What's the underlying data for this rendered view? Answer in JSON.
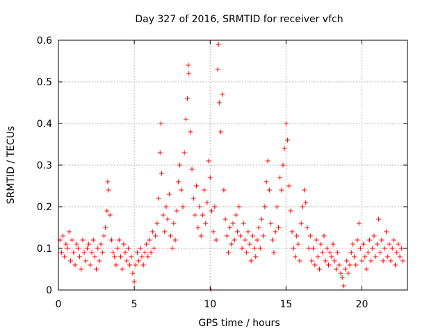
{
  "chart_data": {
    "type": "scatter",
    "title": "Day 327 of 2016, SRMTID for receiver vfch",
    "xlabel": "GPS time / hours",
    "ylabel": "SRMTID / TECUs",
    "xlim": [
      0,
      23
    ],
    "ylim": [
      0,
      0.6
    ],
    "x_ticks": [
      0,
      5,
      10,
      15,
      20
    ],
    "x_tick_labels": [
      "0",
      "5",
      "10",
      "15",
      "20"
    ],
    "y_ticks": [
      0,
      0.1,
      0.2,
      0.3,
      0.4,
      0.5,
      0.6
    ],
    "y_tick_labels": [
      "0",
      "0.1",
      "0.2",
      "0.3",
      "0.4",
      "0.5",
      "0.6"
    ],
    "grid": true,
    "marker": "+",
    "color": "#ff0000",
    "series": [
      {
        "name": "vfch",
        "points": [
          [
            0.1,
            0.12
          ],
          [
            0.2,
            0.09
          ],
          [
            0.3,
            0.13
          ],
          [
            0.4,
            0.08
          ],
          [
            0.5,
            0.11
          ],
          [
            0.6,
            0.1
          ],
          [
            0.7,
            0.14
          ],
          [
            0.8,
            0.07
          ],
          [
            0.9,
            0.12
          ],
          [
            1.0,
            0.09
          ],
          [
            1.1,
            0.06
          ],
          [
            1.2,
            0.11
          ],
          [
            1.3,
            0.1
          ],
          [
            1.4,
            0.08
          ],
          [
            1.5,
            0.05
          ],
          [
            1.6,
            0.12
          ],
          [
            1.7,
            0.09
          ],
          [
            1.8,
            0.07
          ],
          [
            1.9,
            0.1
          ],
          [
            2.0,
            0.11
          ],
          [
            2.1,
            0.06
          ],
          [
            2.2,
            0.09
          ],
          [
            2.3,
            0.12
          ],
          [
            2.4,
            0.08
          ],
          [
            2.5,
            0.05
          ],
          [
            2.6,
            0.1
          ],
          [
            2.7,
            0.07
          ],
          [
            2.8,
            0.11
          ],
          [
            2.9,
            0.09
          ],
          [
            3.0,
            0.13
          ],
          [
            3.1,
            0.15
          ],
          [
            3.2,
            0.19
          ],
          [
            3.25,
            0.26
          ],
          [
            3.3,
            0.24
          ],
          [
            3.4,
            0.18
          ],
          [
            3.5,
            0.12
          ],
          [
            3.6,
            0.09
          ],
          [
            3.7,
            0.08
          ],
          [
            3.8,
            0.06
          ],
          [
            3.9,
            0.1
          ],
          [
            4.0,
            0.12
          ],
          [
            4.1,
            0.08
          ],
          [
            4.2,
            0.05
          ],
          [
            4.3,
            0.11
          ],
          [
            4.4,
            0.09
          ],
          [
            4.5,
            0.07
          ],
          [
            4.6,
            0.1
          ],
          [
            4.7,
            0.06
          ],
          [
            4.8,
            0.08
          ],
          [
            4.9,
            0.04
          ],
          [
            5.0,
            0.02
          ],
          [
            5.1,
            0.06
          ],
          [
            5.2,
            0.09
          ],
          [
            5.3,
            0.07
          ],
          [
            5.4,
            0.1
          ],
          [
            5.5,
            0.08
          ],
          [
            5.6,
            0.06
          ],
          [
            5.7,
            0.09
          ],
          [
            5.8,
            0.11
          ],
          [
            5.9,
            0.08
          ],
          [
            6.0,
            0.12
          ],
          [
            6.1,
            0.09
          ],
          [
            6.2,
            0.14
          ],
          [
            6.3,
            0.1
          ],
          [
            6.4,
            0.13
          ],
          [
            6.5,
            0.16
          ],
          [
            6.6,
            0.22
          ],
          [
            6.7,
            0.33
          ],
          [
            6.75,
            0.4
          ],
          [
            6.8,
            0.28
          ],
          [
            6.9,
            0.18
          ],
          [
            7.0,
            0.14
          ],
          [
            7.1,
            0.2
          ],
          [
            7.2,
            0.17
          ],
          [
            7.3,
            0.23
          ],
          [
            7.4,
            0.13
          ],
          [
            7.5,
            0.1
          ],
          [
            7.6,
            0.16
          ],
          [
            7.7,
            0.12
          ],
          [
            7.8,
            0.19
          ],
          [
            7.9,
            0.26
          ],
          [
            8.0,
            0.3
          ],
          [
            8.1,
            0.24
          ],
          [
            8.2,
            0.2
          ],
          [
            8.3,
            0.33
          ],
          [
            8.4,
            0.41
          ],
          [
            8.5,
            0.46
          ],
          [
            8.55,
            0.54
          ],
          [
            8.6,
            0.52
          ],
          [
            8.7,
            0.38
          ],
          [
            8.8,
            0.29
          ],
          [
            8.9,
            0.22
          ],
          [
            9.0,
            0.18
          ],
          [
            9.1,
            0.25
          ],
          [
            9.2,
            0.15
          ],
          [
            9.3,
            0.2
          ],
          [
            9.4,
            0.13
          ],
          [
            9.5,
            0.18
          ],
          [
            9.6,
            0.24
          ],
          [
            9.7,
            0.16
          ],
          [
            9.8,
            0.21
          ],
          [
            9.9,
            0.31
          ],
          [
            10.0,
            0.27
          ],
          [
            10.05,
            0.0
          ],
          [
            10.1,
            0.19
          ],
          [
            10.2,
            0.14
          ],
          [
            10.3,
            0.2
          ],
          [
            10.4,
            0.12
          ],
          [
            10.5,
            0.53
          ],
          [
            10.55,
            0.59
          ],
          [
            10.6,
            0.45
          ],
          [
            10.7,
            0.38
          ],
          [
            10.8,
            0.47
          ],
          [
            10.9,
            0.24
          ],
          [
            11.0,
            0.17
          ],
          [
            11.1,
            0.13
          ],
          [
            11.2,
            0.09
          ],
          [
            11.3,
            0.15
          ],
          [
            11.4,
            0.11
          ],
          [
            11.5,
            0.16
          ],
          [
            11.6,
            0.12
          ],
          [
            11.7,
            0.18
          ],
          [
            11.8,
            0.14
          ],
          [
            11.9,
            0.2
          ],
          [
            12.0,
            0.13
          ],
          [
            12.1,
            0.1
          ],
          [
            12.2,
            0.16
          ],
          [
            12.3,
            0.12
          ],
          [
            12.4,
            0.09
          ],
          [
            12.5,
            0.14
          ],
          [
            12.6,
            0.11
          ],
          [
            12.7,
            0.07
          ],
          [
            12.8,
            0.13
          ],
          [
            12.9,
            0.1
          ],
          [
            13.0,
            0.08
          ],
          [
            13.1,
            0.12
          ],
          [
            13.2,
            0.15
          ],
          [
            13.3,
            0.1
          ],
          [
            13.4,
            0.17
          ],
          [
            13.5,
            0.13
          ],
          [
            13.6,
            0.2
          ],
          [
            13.7,
            0.26
          ],
          [
            13.8,
            0.31
          ],
          [
            13.9,
            0.24
          ],
          [
            14.0,
            0.16
          ],
          [
            14.1,
            0.12
          ],
          [
            14.2,
            0.09
          ],
          [
            14.3,
            0.14
          ],
          [
            14.4,
            0.2
          ],
          [
            14.5,
            0.15
          ],
          [
            14.6,
            0.27
          ],
          [
            14.7,
            0.24
          ],
          [
            14.8,
            0.3
          ],
          [
            14.9,
            0.34
          ],
          [
            15.0,
            0.4
          ],
          [
            15.1,
            0.36
          ],
          [
            15.2,
            0.25
          ],
          [
            15.3,
            0.19
          ],
          [
            15.4,
            0.14
          ],
          [
            15.5,
            0.1
          ],
          [
            15.6,
            0.08
          ],
          [
            15.7,
            0.13
          ],
          [
            15.8,
            0.11
          ],
          [
            15.9,
            0.07
          ],
          [
            16.0,
            0.16
          ],
          [
            16.1,
            0.2
          ],
          [
            16.2,
            0.24
          ],
          [
            16.3,
            0.21
          ],
          [
            16.4,
            0.15
          ],
          [
            16.5,
            0.1
          ],
          [
            16.6,
            0.13
          ],
          [
            16.7,
            0.07
          ],
          [
            16.8,
            0.1
          ],
          [
            16.9,
            0.06
          ],
          [
            17.0,
            0.12
          ],
          [
            17.1,
            0.08
          ],
          [
            17.2,
            0.05
          ],
          [
            17.3,
            0.11
          ],
          [
            17.4,
            0.09
          ],
          [
            17.5,
            0.13
          ],
          [
            17.6,
            0.07
          ],
          [
            17.7,
            0.1
          ],
          [
            17.8,
            0.06
          ],
          [
            17.9,
            0.09
          ],
          [
            18.0,
            0.08
          ],
          [
            18.1,
            0.11
          ],
          [
            18.2,
            0.07
          ],
          [
            18.3,
            0.05
          ],
          [
            18.4,
            0.09
          ],
          [
            18.5,
            0.06
          ],
          [
            18.6,
            0.04
          ],
          [
            18.7,
            0.03
          ],
          [
            18.8,
            0.01
          ],
          [
            18.9,
            0.05
          ],
          [
            19.0,
            0.07
          ],
          [
            19.1,
            0.04
          ],
          [
            19.2,
            0.06
          ],
          [
            19.3,
            0.09
          ],
          [
            19.4,
            0.11
          ],
          [
            19.5,
            0.08
          ],
          [
            19.6,
            0.06
          ],
          [
            19.7,
            0.12
          ],
          [
            19.8,
            0.16
          ],
          [
            19.9,
            0.1
          ],
          [
            20.0,
            0.07
          ],
          [
            20.1,
            0.11
          ],
          [
            20.2,
            0.08
          ],
          [
            20.3,
            0.05
          ],
          [
            20.4,
            0.09
          ],
          [
            20.5,
            0.12
          ],
          [
            20.6,
            0.07
          ],
          [
            20.7,
            0.1
          ],
          [
            20.8,
            0.13
          ],
          [
            20.9,
            0.08
          ],
          [
            21.0,
            0.11
          ],
          [
            21.1,
            0.17
          ],
          [
            21.2,
            0.09
          ],
          [
            21.3,
            0.12
          ],
          [
            21.4,
            0.07
          ],
          [
            21.5,
            0.1
          ],
          [
            21.6,
            0.14
          ],
          [
            21.7,
            0.08
          ],
          [
            21.8,
            0.11
          ],
          [
            21.9,
            0.07
          ],
          [
            22.0,
            0.1
          ],
          [
            22.1,
            0.12
          ],
          [
            22.2,
            0.06
          ],
          [
            22.3,
            0.09
          ],
          [
            22.4,
            0.11
          ],
          [
            22.5,
            0.08
          ],
          [
            22.6,
            0.1
          ],
          [
            22.7,
            0.07
          ]
        ]
      }
    ]
  }
}
